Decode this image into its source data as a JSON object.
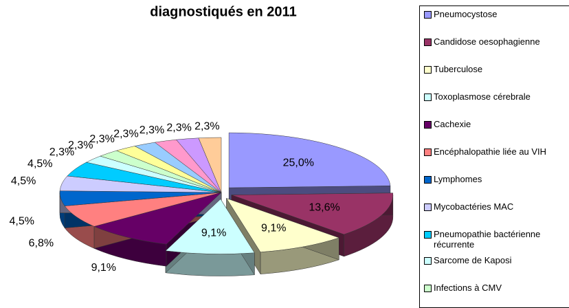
{
  "chart_data": {
    "type": "pie3d",
    "title": "diagnostiqués en 2011",
    "categories": [
      "Pneumocystose",
      "Candidose oesophagienne",
      "Tuberculose",
      "Toxoplasmose cérebrale",
      "Cachexie",
      "Encéphalopathie liée au VIH",
      "Lymphomes",
      "Mycobactéries MAC",
      "Pneumopathie bactérienne récurrente",
      "Sarcome de Kaposi",
      "Infections à CMV",
      null,
      null,
      null,
      null,
      null
    ],
    "values": [
      25.0,
      13.6,
      9.1,
      9.1,
      9.1,
      6.8,
      4.5,
      4.5,
      4.5,
      2.3,
      2.3,
      2.3,
      2.3,
      2.3,
      2.3,
      2.3
    ],
    "value_labels": [
      "25,0%",
      "13,6%",
      "9,1%",
      "9,1%",
      "9,1%",
      "6,8%",
      "4,5%",
      "4,5%",
      "4,5%",
      "2,3%",
      "2,3%",
      "2,3%",
      "2,3%",
      "2,3%",
      "2,3%",
      "2,3%"
    ],
    "colors": [
      "#9999ff",
      "#993366",
      "#ffffcc",
      "#ccffff",
      "#660066",
      "#ff8080",
      "#0066cc",
      "#ccccff",
      "#00ccff",
      "#ccffff",
      "#ccffcc",
      "#ffff99",
      "#99ccff",
      "#ff99cc",
      "#cc99ff",
      "#ffcc99"
    ]
  }
}
